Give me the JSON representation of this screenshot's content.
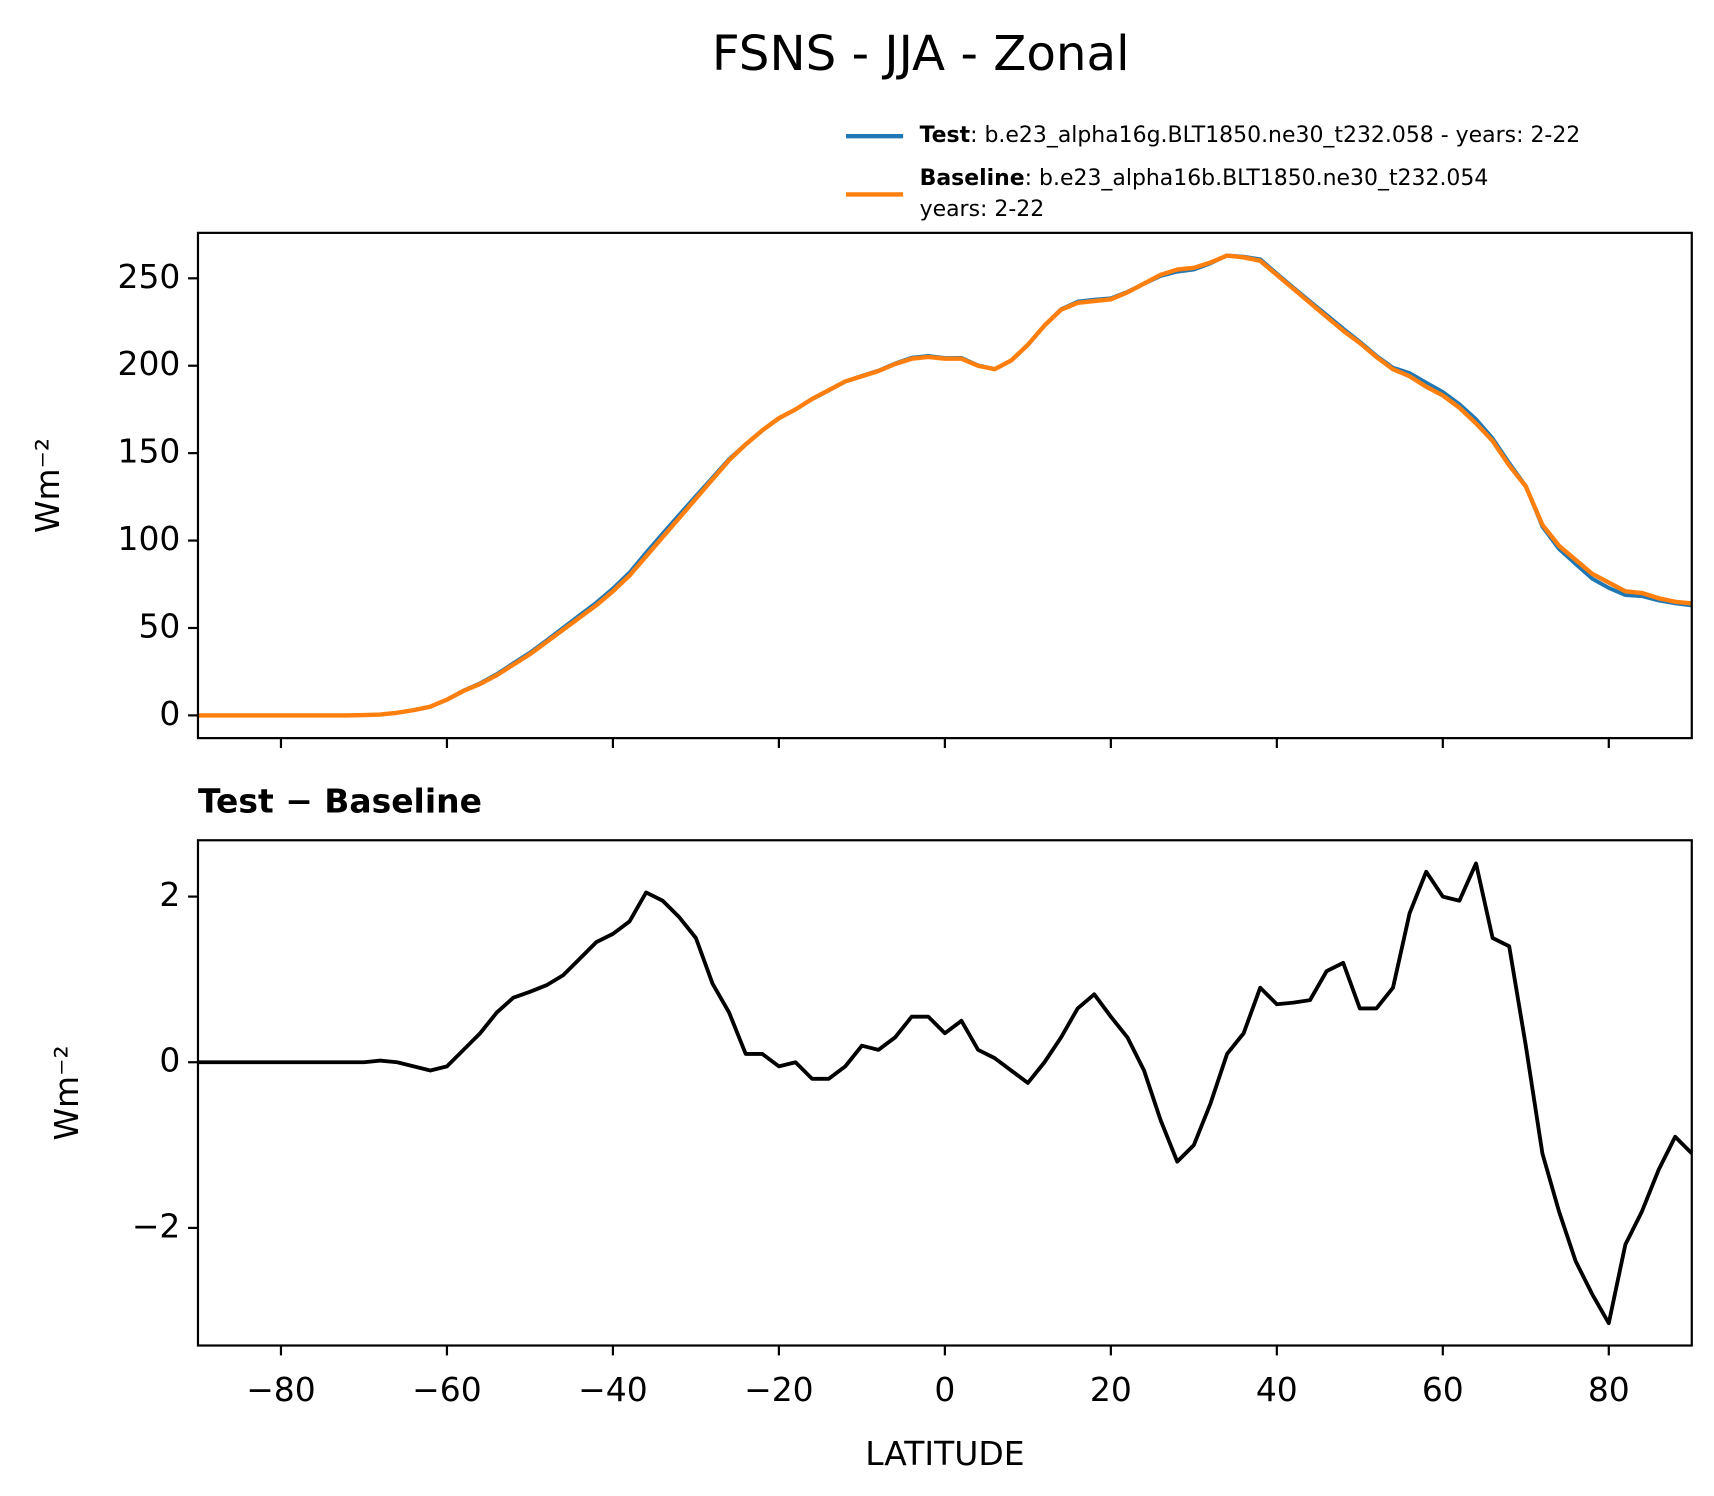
{
  "chart_data": [
    {
      "type": "line",
      "title": "FSNS - JJA - Zonal",
      "ylabel": "Wm⁻²",
      "x": [
        -90,
        -88,
        -86,
        -84,
        -82,
        -80,
        -78,
        -76,
        -74,
        -72,
        -70,
        -68,
        -66,
        -64,
        -62,
        -60,
        -58,
        -56,
        -54,
        -52,
        -50,
        -48,
        -46,
        -44,
        -42,
        -40,
        -38,
        -36,
        -34,
        -32,
        -30,
        -28,
        -26,
        -24,
        -22,
        -20,
        -18,
        -16,
        -14,
        -12,
        -10,
        -8,
        -6,
        -4,
        -2,
        0,
        2,
        4,
        6,
        8,
        10,
        12,
        14,
        16,
        18,
        20,
        22,
        24,
        26,
        28,
        30,
        32,
        34,
        36,
        38,
        40,
        42,
        44,
        46,
        48,
        50,
        52,
        54,
        56,
        58,
        60,
        62,
        64,
        66,
        68,
        70,
        72,
        74,
        76,
        78,
        80,
        82,
        84,
        86,
        88,
        90
      ],
      "series": [
        {
          "name": "Test",
          "label_lines": [
            ": b.e23_alpha16g.BLT1850.ne30_t232.058 - years: 2-22"
          ],
          "color": "#1f77b4",
          "values": [
            0,
            0,
            0,
            0,
            0,
            0,
            0,
            0,
            0,
            0,
            0.2,
            0.5,
            1.5,
            3,
            4.9,
            9,
            14.2,
            18.4,
            23.6,
            29.8,
            35.9,
            42.9,
            50.1,
            57.3,
            64.5,
            72.6,
            81.7,
            93.1,
            104,
            114.8,
            125.5,
            136,
            146.6,
            155.1,
            163.1,
            170,
            175,
            180.8,
            185.8,
            191,
            194.2,
            197.2,
            201.3,
            204.6,
            205.6,
            204.4,
            204.5,
            200.2,
            198.1,
            202.9,
            211.8,
            223,
            232.3,
            236.7,
            237.8,
            238.6,
            242.3,
            246.9,
            251.3,
            253.8,
            255,
            258.5,
            263.1,
            262.4,
            260.9,
            252.7,
            244.7,
            236.8,
            229.1,
            221.2,
            213.7,
            205.7,
            198.9,
            195.8,
            190.3,
            185,
            178,
            169.4,
            158.5,
            144.4,
            131.2,
            107.9,
            95.2,
            86.6,
            78.2,
            72.9,
            68.8,
            68.2,
            65.7,
            64.1,
            62.9
          ]
        },
        {
          "name": "Baseline",
          "label_lines": [
            ": b.e23_alpha16b.BLT1850.ne30_t232.054",
            "years: 2-22"
          ],
          "color": "#ff7f0e",
          "values": [
            0,
            0,
            0,
            0,
            0,
            0,
            0,
            0,
            0,
            0,
            0.2,
            0.5,
            1.5,
            3,
            5,
            9,
            14,
            18,
            23,
            29,
            35,
            42,
            49,
            56,
            63,
            71,
            80,
            91,
            102,
            113,
            124,
            135,
            146,
            155,
            163,
            170,
            175,
            181,
            186,
            191,
            194,
            197,
            201,
            204,
            205,
            204,
            204,
            200,
            198,
            203,
            212,
            223,
            232,
            236,
            237,
            238,
            242,
            247,
            252,
            255,
            256,
            259,
            263,
            262,
            260,
            252,
            244,
            236,
            228,
            220,
            213,
            205,
            198,
            194,
            188,
            183,
            176,
            167,
            157,
            143,
            131,
            109,
            97,
            89,
            81,
            76,
            71,
            70,
            67,
            65,
            64
          ]
        }
      ],
      "xlim": [
        -90,
        90
      ],
      "ylim": [
        -13,
        276
      ],
      "xticks": [
        -80,
        -60,
        -40,
        -20,
        0,
        20,
        40,
        60,
        80
      ],
      "yticks": [
        0,
        50,
        100,
        150,
        200,
        250
      ]
    },
    {
      "type": "line",
      "title": "Test − Baseline",
      "ylabel": "Wm⁻²",
      "xlabel": "LATITUDE",
      "x": [
        -90,
        -88,
        -86,
        -84,
        -82,
        -80,
        -78,
        -76,
        -74,
        -72,
        -70,
        -68,
        -66,
        -64,
        -62,
        -60,
        -58,
        -56,
        -54,
        -52,
        -50,
        -48,
        -46,
        -44,
        -42,
        -40,
        -38,
        -36,
        -34,
        -32,
        -30,
        -28,
        -26,
        -24,
        -22,
        -20,
        -18,
        -16,
        -14,
        -12,
        -10,
        -8,
        -6,
        -4,
        -2,
        0,
        2,
        4,
        6,
        8,
        10,
        12,
        14,
        16,
        18,
        20,
        22,
        24,
        26,
        28,
        30,
        32,
        34,
        36,
        38,
        40,
        42,
        44,
        46,
        48,
        50,
        52,
        54,
        56,
        58,
        60,
        62,
        64,
        66,
        68,
        70,
        72,
        74,
        76,
        78,
        80,
        82,
        84,
        86,
        88,
        90
      ],
      "series": [
        {
          "color": "#000000",
          "values": [
            0,
            0,
            0,
            0,
            0,
            0,
            0,
            0,
            0,
            0,
            0,
            0.02,
            0,
            -0.05,
            -0.1,
            -0.05,
            0.15,
            0.35,
            0.6,
            0.78,
            0.85,
            0.93,
            1.05,
            1.25,
            1.45,
            1.55,
            1.7,
            2.05,
            1.95,
            1.75,
            1.5,
            0.95,
            0.6,
            0.1,
            0.1,
            -0.05,
            0,
            -0.2,
            -0.2,
            -0.05,
            0.2,
            0.15,
            0.3,
            0.55,
            0.55,
            0.35,
            0.5,
            0.15,
            0.05,
            -0.1,
            -0.25,
            0,
            0.3,
            0.65,
            0.82,
            0.55,
            0.3,
            -0.1,
            -0.7,
            -1.2,
            -1,
            -0.5,
            0.1,
            0.35,
            0.9,
            0.7,
            0.72,
            0.75,
            1.1,
            1.2,
            0.65,
            0.65,
            0.9,
            1.8,
            2.3,
            2,
            1.95,
            2.4,
            1.5,
            1.4,
            0.2,
            -1.1,
            -1.8,
            -2.4,
            -2.8,
            -3.15,
            -2.2,
            -1.8,
            -1.3,
            -0.9,
            -1.1
          ]
        }
      ],
      "xlim": [
        -90,
        90
      ],
      "ylim": [
        -3.42,
        2.68
      ],
      "xticks": [
        {
          "value": -80,
          "label": "−80"
        },
        {
          "value": -60,
          "label": "−60"
        },
        {
          "value": -40,
          "label": "−40"
        },
        {
          "value": -20,
          "label": "−20"
        },
        0,
        20,
        40,
        60,
        80
      ],
      "yticks": [
        {
          "value": -2,
          "label": "−2"
        },
        0,
        2
      ]
    }
  ]
}
